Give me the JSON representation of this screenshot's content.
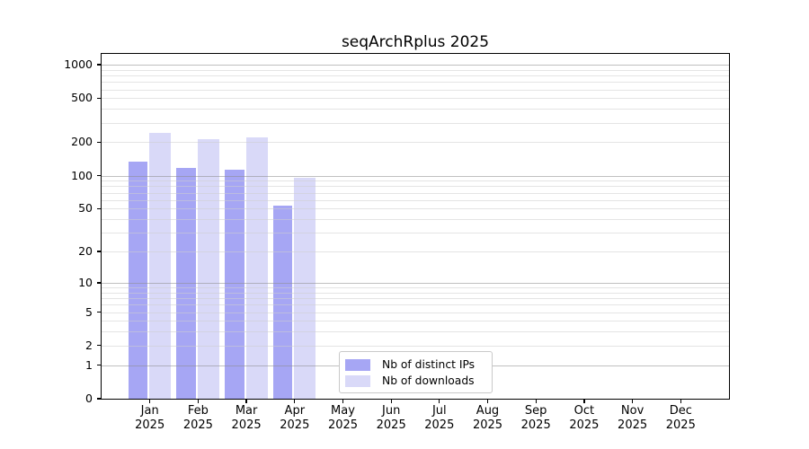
{
  "title": "seqArchRplus 2025",
  "chart_data": {
    "type": "bar",
    "title": "seqArchRplus 2025",
    "categories": [
      "Jan",
      "Feb",
      "Mar",
      "Apr",
      "May",
      "Jun",
      "Jul",
      "Aug",
      "Sep",
      "Oct",
      "Nov",
      "Dec"
    ],
    "year": "2025",
    "series": [
      {
        "name": "Nb of distinct IPs",
        "color": "#a6a6f4",
        "values": [
          133,
          117,
          113,
          53,
          0,
          0,
          0,
          0,
          0,
          0,
          0,
          0
        ]
      },
      {
        "name": "Nb of downloads",
        "color": "#d9d9f8",
        "values": [
          244,
          212,
          222,
          96,
          0,
          0,
          0,
          0,
          0,
          0,
          0,
          0
        ]
      }
    ],
    "xlabel": "",
    "ylabel": "",
    "yticks": [
      0,
      1,
      2,
      5,
      10,
      20,
      50,
      100,
      200,
      500,
      1000
    ],
    "yscale": "log1p",
    "ylim": [
      0,
      1250
    ],
    "grid": "horizontal, major and minor, drawn over bars",
    "legend_position": "bottom-center",
    "legend_labels": [
      "Nb of distinct IPs",
      "Nb of downloads"
    ],
    "colors": {
      "distinct_ips": "#a6a6f4",
      "downloads": "#d9d9f8",
      "grid_major": "#8c8c8c",
      "grid_minor": "#cdcdcd",
      "spine": "#000000"
    }
  }
}
